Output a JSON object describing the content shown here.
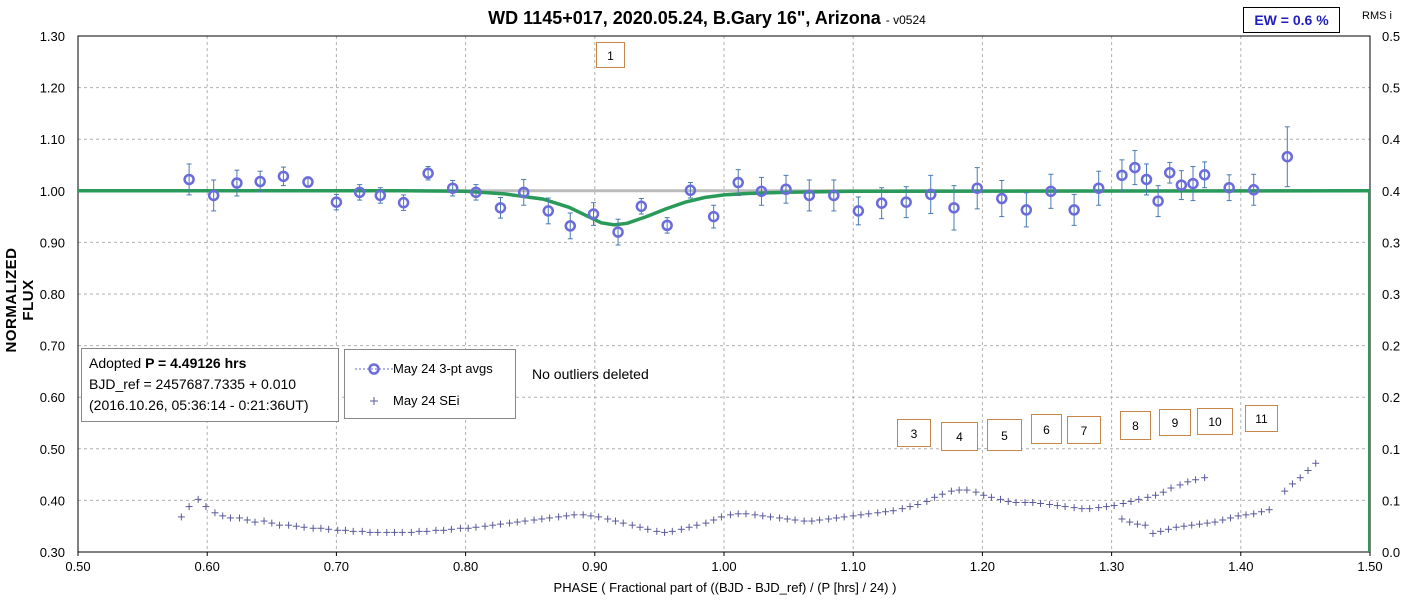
{
  "header": {
    "title": "WD 1145+017, 2020.05.24, B.Gary 16\", Arizona",
    "version": "-  v0524",
    "ew_label": "EW = 0.6 %",
    "rms_label": "RMS i"
  },
  "info": {
    "line1_prefix": "Adopted ",
    "line1_bold": "P = 4.49126 hrs",
    "line2": "BJD_ref = 2457687.7335 + 0.010",
    "line3": "(2016.10.26, 05:36:14 - 0:21:36UT)"
  },
  "legend": {
    "avgs": "May 24 3-pt avgs",
    "sei": "May 24 SEi"
  },
  "note": "No outliers deleted",
  "markers": [
    "1",
    "3",
    "4",
    "5",
    "6",
    "7",
    "8",
    "9",
    "10",
    "11"
  ],
  "colors": {
    "avgs": "#6b6bdc",
    "sei": "#5a5a9c",
    "model": "#2a9a5a",
    "baseline": "#bbbbbb",
    "grid": "#b0b0b0",
    "marker_border": "#c8874a"
  },
  "chart_data": {
    "type": "scatter",
    "title": "WD 1145+017, 2020.05.24, B.Gary 16\", Arizona",
    "xlabel": "PHASE ( Fractional part of ((BJD - BJD_ref) / (P [hrs] / 24) )",
    "ylabel": "NORMALIZED FLUX",
    "y2label": "RMS i",
    "xlim": [
      0.5,
      1.5
    ],
    "ylim": [
      0.3,
      1.3
    ],
    "y2lim": [
      0.0,
      0.5
    ],
    "x_ticks": [
      "0.50",
      "0.60",
      "0.70",
      "0.80",
      "0.90",
      "1.00",
      "1.10",
      "1.20",
      "1.30",
      "1.40",
      "1.50"
    ],
    "y_ticks": [
      "0.30",
      "0.40",
      "0.50",
      "0.60",
      "0.70",
      "0.80",
      "0.90",
      "1.00",
      "1.10",
      "1.20",
      "1.30"
    ],
    "y2_ticks": [
      "0.0",
      "0.1",
      "0.1",
      "0.2",
      "0.2",
      "0.3",
      "0.3",
      "0.4",
      "0.4",
      "0.5",
      "0.5"
    ],
    "grid": true,
    "series": [
      {
        "name": "May 24 3-pt avgs",
        "x": [
          0.586,
          0.605,
          0.623,
          0.641,
          0.659,
          0.678,
          0.7,
          0.718,
          0.734,
          0.752,
          0.771,
          0.79,
          0.808,
          0.827,
          0.845,
          0.864,
          0.881,
          0.899,
          0.918,
          0.936,
          0.956,
          0.974,
          0.992,
          1.011,
          1.029,
          1.048,
          1.066,
          1.085,
          1.104,
          1.122,
          1.141,
          1.16,
          1.178,
          1.196,
          1.215,
          1.234,
          1.253,
          1.271,
          1.29,
          1.308,
          1.318,
          1.327,
          1.336,
          1.345,
          1.354,
          1.363,
          1.372,
          1.391,
          1.41,
          1.436
        ],
        "y": [
          1.022,
          0.991,
          1.015,
          1.018,
          1.028,
          1.017,
          0.978,
          0.997,
          0.991,
          0.977,
          1.034,
          1.005,
          0.997,
          0.967,
          0.997,
          0.961,
          0.932,
          0.955,
          0.92,
          0.97,
          0.933,
          1.001,
          0.95,
          1.016,
          0.999,
          1.003,
          0.991,
          0.991,
          0.961,
          0.976,
          0.978,
          0.993,
          0.967,
          1.005,
          0.985,
          0.963,
          0.999,
          0.963,
          1.005,
          1.03,
          1.045,
          1.022,
          0.98,
          1.035,
          1.011,
          1.014,
          1.031,
          1.006,
          1.002,
          1.066
        ],
        "yerr": [
          0.03,
          0.03,
          0.025,
          0.02,
          0.018,
          0.01,
          0.015,
          0.015,
          0.015,
          0.015,
          0.013,
          0.015,
          0.015,
          0.02,
          0.025,
          0.025,
          0.025,
          0.022,
          0.025,
          0.015,
          0.015,
          0.015,
          0.022,
          0.025,
          0.027,
          0.027,
          0.03,
          0.03,
          0.027,
          0.03,
          0.03,
          0.037,
          0.043,
          0.04,
          0.035,
          0.033,
          0.033,
          0.03,
          0.033,
          0.03,
          0.033,
          0.03,
          0.03,
          0.02,
          0.028,
          0.033,
          0.025,
          0.025,
          0.03,
          0.058
        ]
      },
      {
        "name": "May 24 SEi",
        "axis": "right",
        "x": [
          0.58,
          0.586,
          0.593,
          0.599,
          0.606,
          0.612,
          0.618,
          0.625,
          0.631,
          0.637,
          0.644,
          0.65,
          0.656,
          0.663,
          0.669,
          0.675,
          0.682,
          0.688,
          0.694,
          0.701,
          0.707,
          0.713,
          0.72,
          0.726,
          0.732,
          0.739,
          0.745,
          0.751,
          0.758,
          0.764,
          0.77,
          0.777,
          0.783,
          0.789,
          0.796,
          0.802,
          0.808,
          0.815,
          0.821,
          0.827,
          0.834,
          0.84,
          0.846,
          0.853,
          0.859,
          0.865,
          0.872,
          0.878,
          0.884,
          0.891,
          0.897,
          0.903,
          0.91,
          0.916,
          0.922,
          0.929,
          0.935,
          0.941,
          0.948,
          0.954,
          0.96,
          0.967,
          0.973,
          0.979,
          0.986,
          0.992,
          0.998,
          1.005,
          1.011,
          1.017,
          1.024,
          1.03,
          1.036,
          1.043,
          1.049,
          1.055,
          1.062,
          1.068,
          1.074,
          1.081,
          1.087,
          1.093,
          1.1,
          1.106,
          1.112,
          1.119,
          1.125,
          1.131,
          1.138,
          1.144,
          1.15,
          1.157,
          1.163,
          1.169,
          1.176,
          1.182,
          1.188,
          1.195,
          1.201,
          1.207,
          1.214,
          1.22,
          1.226,
          1.233,
          1.239,
          1.245,
          1.252,
          1.258,
          1.264,
          1.271,
          1.277,
          1.283,
          1.29,
          1.296,
          1.302,
          1.309,
          1.315,
          1.321,
          1.328,
          1.334,
          1.34,
          1.346,
          1.353,
          1.359,
          1.365,
          1.372,
          1.308,
          1.314,
          1.32,
          1.326,
          1.332,
          1.338,
          1.344,
          1.35,
          1.356,
          1.362,
          1.368,
          1.374,
          1.38,
          1.386,
          1.392,
          1.398,
          1.404,
          1.41,
          1.416,
          1.422,
          1.434,
          1.44,
          1.446,
          1.452,
          1.458
        ],
        "y": [
          0.034,
          0.044,
          0.051,
          0.044,
          0.038,
          0.035,
          0.033,
          0.033,
          0.031,
          0.029,
          0.03,
          0.028,
          0.026,
          0.026,
          0.025,
          0.024,
          0.023,
          0.023,
          0.022,
          0.021,
          0.021,
          0.02,
          0.02,
          0.019,
          0.019,
          0.019,
          0.019,
          0.019,
          0.019,
          0.02,
          0.02,
          0.021,
          0.021,
          0.022,
          0.023,
          0.023,
          0.024,
          0.025,
          0.026,
          0.027,
          0.028,
          0.029,
          0.03,
          0.031,
          0.032,
          0.033,
          0.034,
          0.035,
          0.036,
          0.036,
          0.035,
          0.034,
          0.032,
          0.03,
          0.028,
          0.026,
          0.024,
          0.022,
          0.02,
          0.019,
          0.02,
          0.022,
          0.024,
          0.026,
          0.028,
          0.031,
          0.034,
          0.036,
          0.037,
          0.037,
          0.036,
          0.035,
          0.034,
          0.033,
          0.032,
          0.031,
          0.03,
          0.03,
          0.031,
          0.032,
          0.033,
          0.034,
          0.035,
          0.036,
          0.037,
          0.038,
          0.039,
          0.04,
          0.042,
          0.044,
          0.046,
          0.049,
          0.053,
          0.056,
          0.059,
          0.06,
          0.06,
          0.058,
          0.055,
          0.053,
          0.051,
          0.049,
          0.048,
          0.048,
          0.048,
          0.047,
          0.046,
          0.045,
          0.044,
          0.043,
          0.042,
          0.042,
          0.043,
          0.044,
          0.045,
          0.047,
          0.049,
          0.051,
          0.053,
          0.055,
          0.058,
          0.062,
          0.065,
          0.068,
          0.07,
          0.072,
          0.032,
          0.029,
          0.027,
          0.026,
          0.018,
          0.02,
          0.022,
          0.024,
          0.025,
          0.026,
          0.027,
          0.028,
          0.029,
          0.031,
          0.033,
          0.035,
          0.036,
          0.037,
          0.039,
          0.041,
          0.059,
          0.066,
          0.072,
          0.079,
          0.086
        ],
        "y_extra_x": [
          0.1,
          0.2
        ],
        "y_extra": []
      },
      {
        "name": "model",
        "x": [
          0.5,
          0.75,
          0.8,
          0.83,
          0.86,
          0.88,
          0.895,
          0.905,
          0.915,
          0.925,
          0.94,
          0.955,
          0.97,
          0.985,
          1.0,
          1.02,
          1.05,
          1.1,
          1.5
        ],
        "y": [
          1.0,
          1.0,
          0.999,
          0.994,
          0.984,
          0.968,
          0.95,
          0.938,
          0.934,
          0.937,
          0.95,
          0.965,
          0.978,
          0.987,
          0.992,
          0.995,
          0.997,
          0.999,
          1.0
        ]
      }
    ]
  }
}
